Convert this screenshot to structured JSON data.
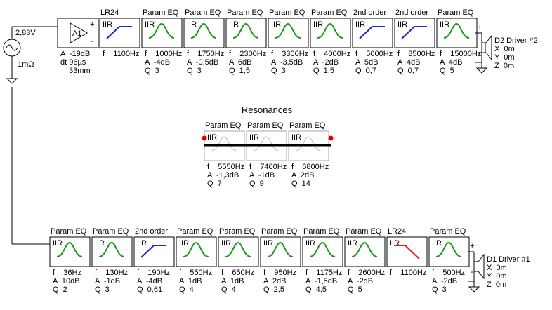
{
  "source": {
    "voltage": "2,83V",
    "resistance": "1mΩ"
  },
  "amplifier": {
    "label": "A1",
    "plus": "+",
    "minus": "-",
    "params": [
      "A  -19dB",
      "dt 96µs",
      "33mm"
    ]
  },
  "top_chain": {
    "blocks": [
      {
        "title": "LR24",
        "kind": "IIR",
        "params": [
          "f    1100Hz"
        ]
      },
      {
        "title": "Param EQ",
        "kind": "IIR",
        "params": [
          "f    1000Hz",
          "A  -4dB",
          "Q  3"
        ]
      },
      {
        "title": "Param EQ",
        "kind": "IIR",
        "params": [
          "f    1750Hz",
          "A  -0,5dB",
          "Q  3"
        ]
      },
      {
        "title": "Param EQ",
        "kind": "IIR",
        "params": [
          "f    2300Hz",
          "A  6dB",
          "Q  1,5"
        ]
      },
      {
        "title": "Param EQ",
        "kind": "IIR",
        "params": [
          "f    3300Hz",
          "A  -3,5dB",
          "Q  3"
        ]
      },
      {
        "title": "Param EQ",
        "kind": "IIR",
        "params": [
          "f    4000Hz",
          "A  -2dB",
          "Q  1,5"
        ]
      },
      {
        "title": "2nd order",
        "kind": "IIR",
        "params": [
          "f    5000Hz",
          "A  5dB",
          "Q  0,7"
        ]
      },
      {
        "title": "2nd order",
        "kind": "IIR",
        "params": [
          "f    8500Hz",
          "A  4dB",
          "Q  0,7"
        ]
      },
      {
        "title": "Param EQ",
        "kind": "IIR",
        "params": [
          "f    15000Hz",
          "A  4dB",
          "Q  5"
        ]
      }
    ],
    "driver": {
      "plus": "+",
      "minus": "-",
      "name": "D2 Driver #2",
      "params": [
        "X  0m",
        "Y  0m",
        "Z  0m"
      ]
    }
  },
  "resonances": {
    "title": "Resonances",
    "blocks": [
      {
        "title": "Param EQ",
        "kind": "IIR",
        "params": [
          "f    5550Hz",
          "A  -1,3dB",
          "Q  7"
        ]
      },
      {
        "title": "Param EQ",
        "kind": "IIR",
        "params": [
          "f    7400Hz",
          "A  -1dB",
          "Q  9"
        ]
      },
      {
        "title": "Param EQ",
        "kind": "IIR",
        "params": [
          "f    6800Hz",
          "A  2dB",
          "Q  14"
        ]
      }
    ]
  },
  "bottom_chain": {
    "blocks": [
      {
        "title": "Param EQ",
        "kind": "IIR",
        "params": [
          "f    36Hz",
          "A  10dB",
          "Q  2"
        ]
      },
      {
        "title": "Param EQ",
        "kind": "IIR",
        "params": [
          "f    130Hz",
          "A  -1dB",
          "Q  3"
        ]
      },
      {
        "title": "2nd order",
        "kind": "IIR",
        "params": [
          "f    190Hz",
          "A  -4dB",
          "Q  0,61"
        ]
      },
      {
        "title": "Param EQ",
        "kind": "IIR",
        "params": [
          "f    550Hz",
          "A  1dB",
          "Q  4"
        ]
      },
      {
        "title": "Param EQ",
        "kind": "IIR",
        "params": [
          "f    650Hz",
          "A  1dB",
          "Q  4"
        ]
      },
      {
        "title": "Param EQ",
        "kind": "IIR",
        "params": [
          "f    950Hz",
          "A  2dB",
          "Q  2,5"
        ]
      },
      {
        "title": "Param EQ",
        "kind": "IIR",
        "params": [
          "f    1175Hz",
          "A  -1,5dB",
          "Q  4,5"
        ]
      },
      {
        "title": "Param EQ",
        "kind": "IIR",
        "params": [
          "f    2600Hz",
          "A  -2dB",
          "Q  5"
        ]
      },
      {
        "title": "LR24",
        "kind": "IIR",
        "params": [
          "f    1100Hz"
        ]
      },
      {
        "title": "Param EQ",
        "kind": "IIR",
        "params": [
          "f    500Hz",
          "A  -2dB",
          "Q  3"
        ]
      }
    ],
    "driver": {
      "plus": "+",
      "minus": "-",
      "name": "D1 Driver #1",
      "params": [
        "X  0m",
        "Y  0m",
        "Z  0m"
      ]
    }
  }
}
